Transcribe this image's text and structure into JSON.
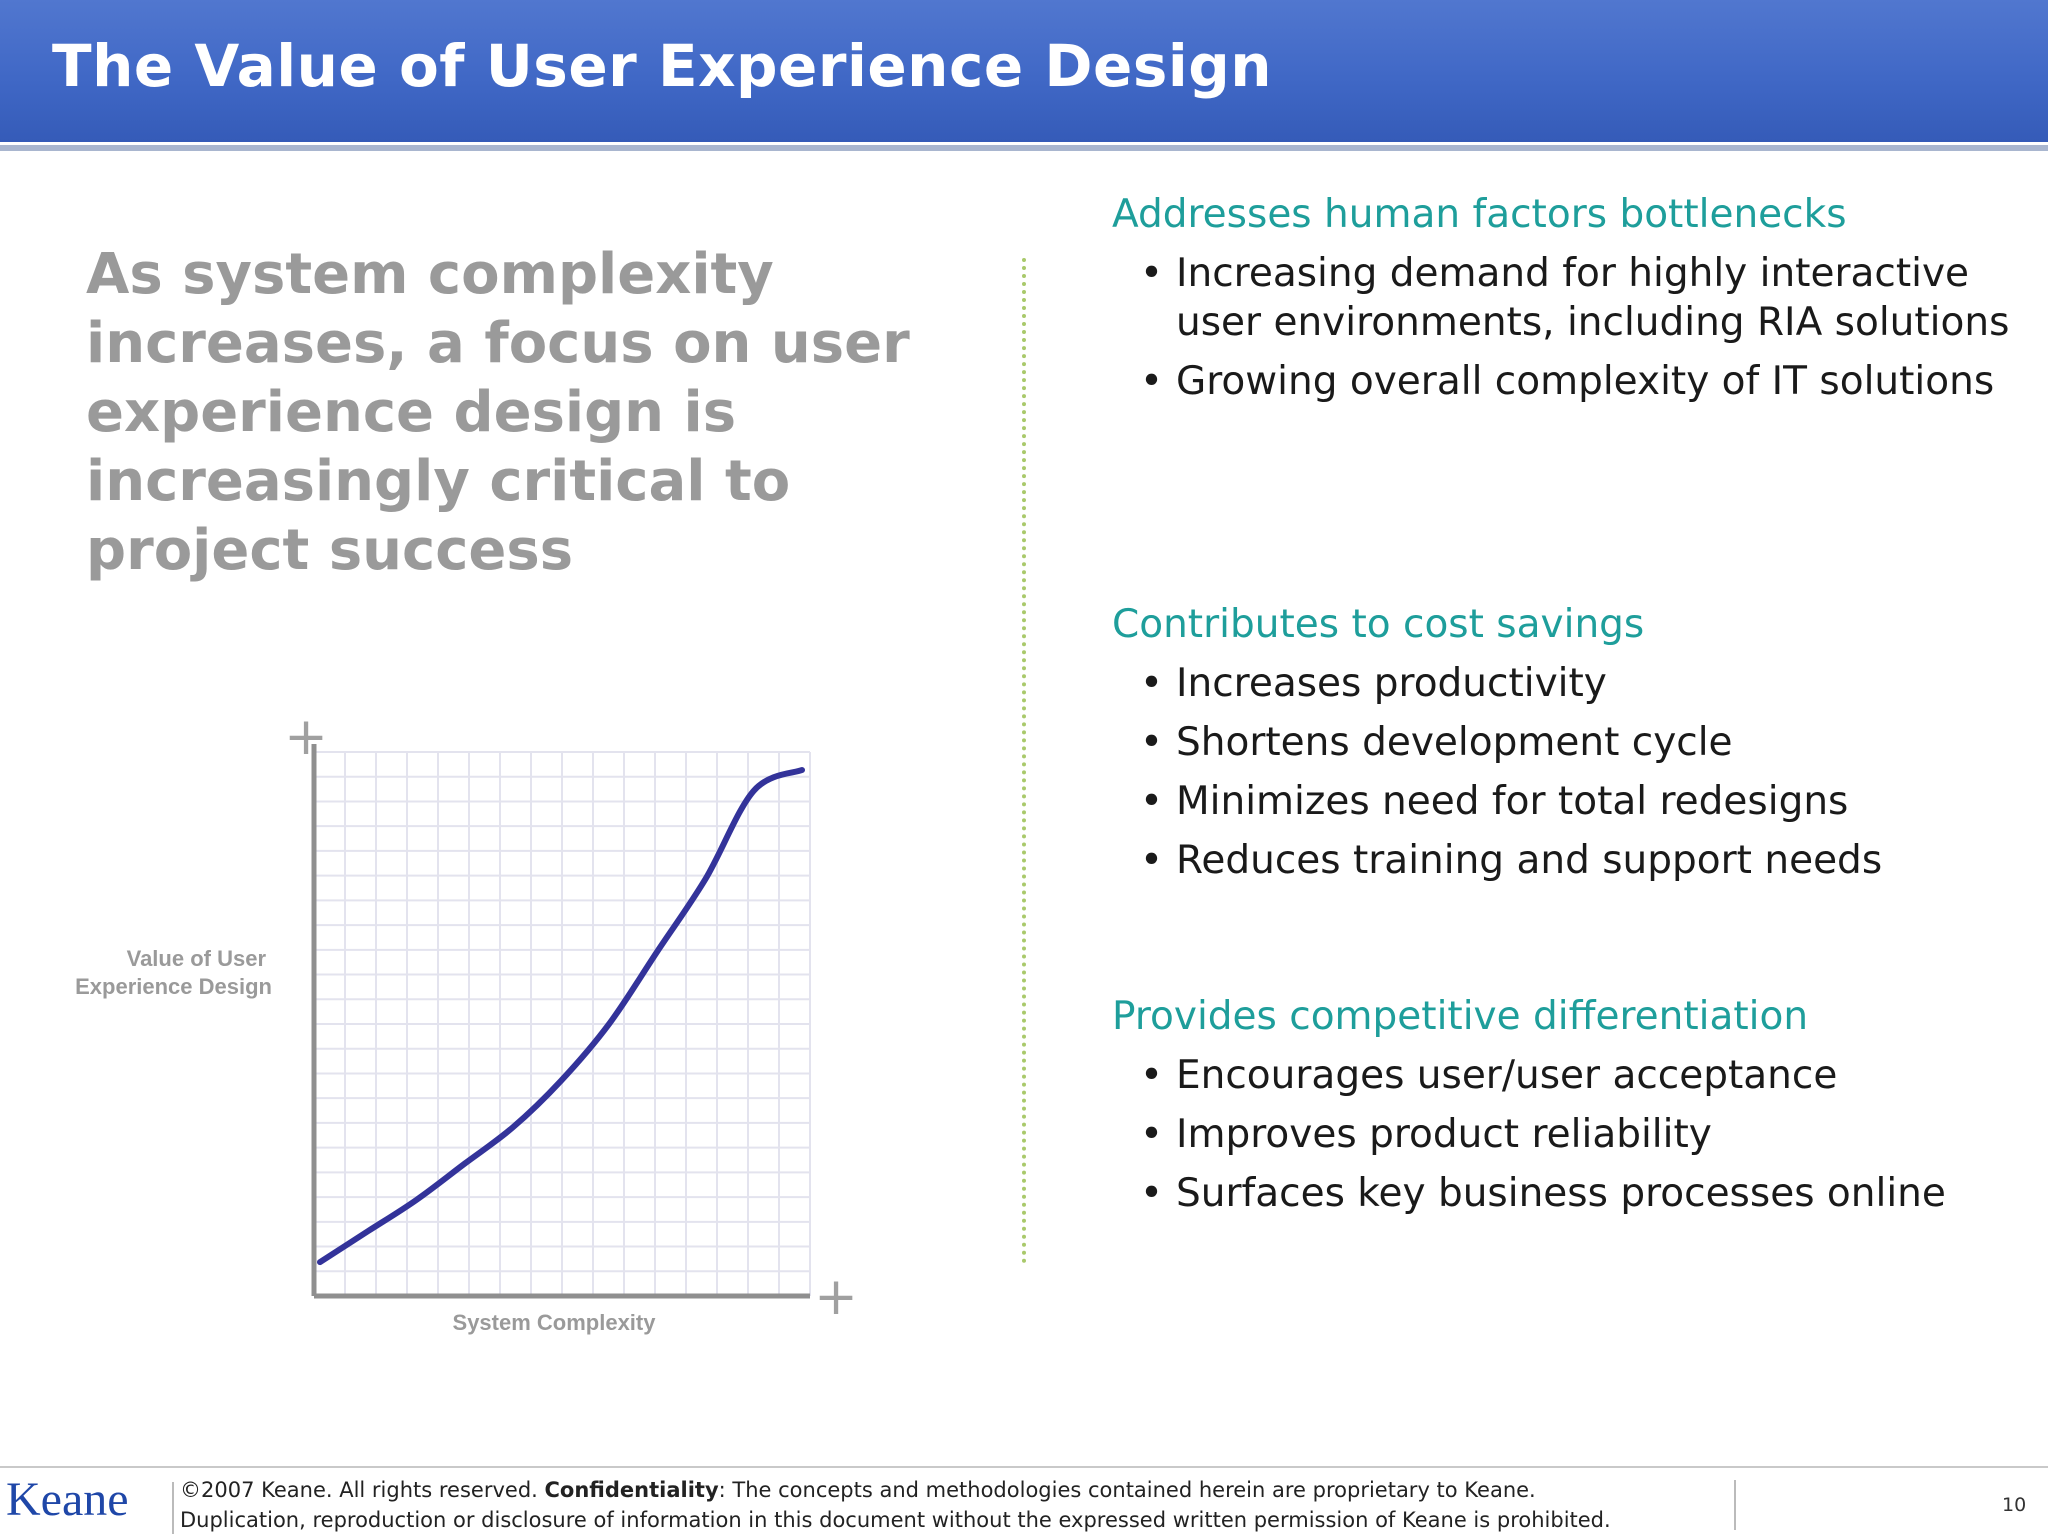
{
  "slide": {
    "title": "The Value of User Experience Design",
    "lead": "As system complexity increases, a focus on user experience design is increasingly critical to project success"
  },
  "sections": [
    {
      "heading": "Addresses human factors bottlenecks",
      "bullets": [
        "Increasing demand for highly interactive user environments, including RIA solutions",
        "Growing overall complexity of IT solutions"
      ]
    },
    {
      "heading": "Contributes to cost savings",
      "bullets": [
        "Increases productivity",
        "Shortens development cycle",
        "Minimizes need for total redesigns",
        "Reduces training and support needs"
      ]
    },
    {
      "heading": "Provides competitive differentiation",
      "bullets": [
        "Encourages user/user acceptance",
        "Improves product reliability",
        "Surfaces key business processes online"
      ]
    }
  ],
  "chart_data": {
    "type": "line",
    "title": "",
    "xlabel": "System Complexity",
    "ylabel_lines": [
      "Value of User",
      "Experience Design"
    ],
    "axis_end_markers": [
      "+",
      "+"
    ],
    "grid": true,
    "xlim": [
      0,
      1
    ],
    "ylim": [
      0,
      1
    ],
    "series": [
      {
        "x": [
          0.0,
          0.1,
          0.2,
          0.3,
          0.4,
          0.5,
          0.6,
          0.7,
          0.8,
          0.9,
          1.0
        ],
        "y": [
          0.05,
          0.11,
          0.17,
          0.24,
          0.31,
          0.4,
          0.51,
          0.65,
          0.79,
          0.96,
          1.0
        ],
        "color": "#33339a"
      }
    ]
  },
  "footer": {
    "logo": "Keane",
    "copyright": "©2007 Keane. All rights reserved.",
    "confidentiality_label": "Confidentiality",
    "confidentiality_text": ": The concepts and methodologies contained herein are proprietary to Keane.",
    "duplication_text": "Duplication, reproduction or disclosure of information in this document without the expressed written permission of Keane is prohibited.",
    "page_number": "10"
  },
  "colors": {
    "header_blue": "#4068c6",
    "heading_teal": "#1e9e9b",
    "lead_gray": "#9a9a9a",
    "curve": "#33339a",
    "divider_green": "#a9c96b",
    "logo_blue": "#1f47a8"
  }
}
